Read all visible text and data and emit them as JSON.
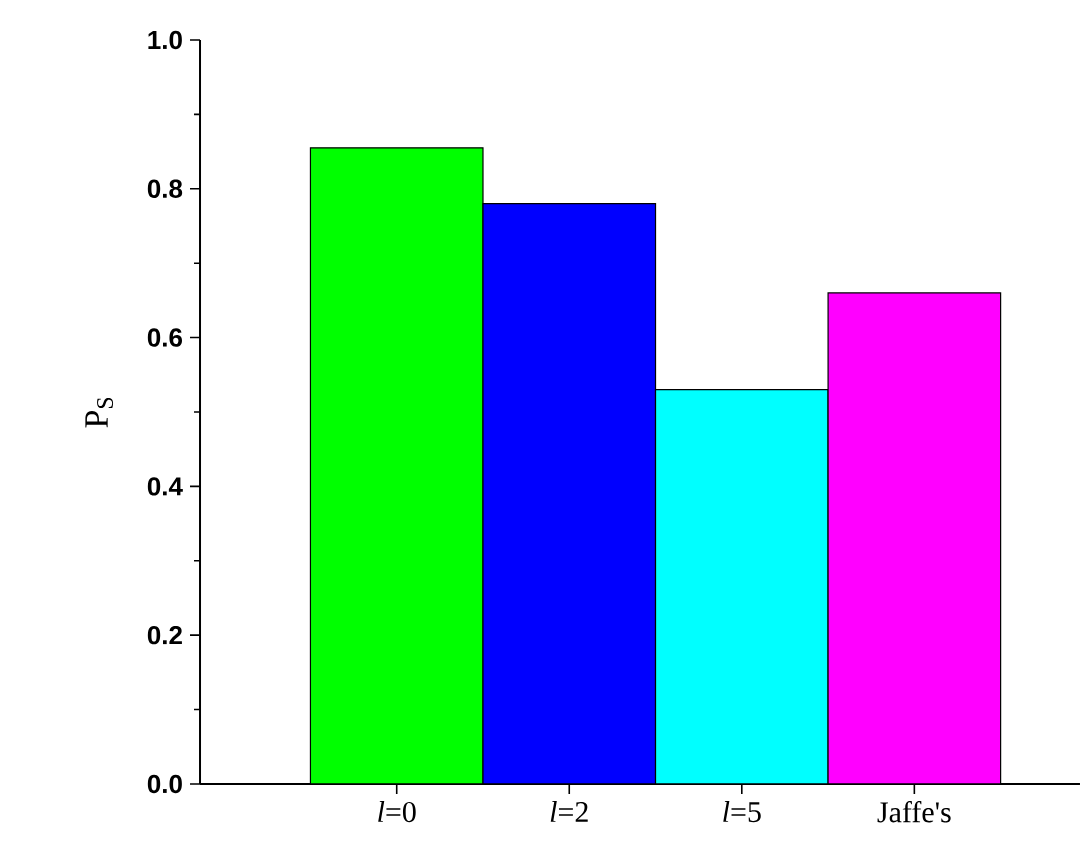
{
  "chart_data": {
    "type": "bar",
    "ylabel": "P$_{S}$",
    "categories": [
      "*l*=0",
      "*l*=2",
      "*l*=5",
      "Jaffe's"
    ],
    "values": [
      0.855,
      0.78,
      0.53,
      0.66
    ],
    "colors": [
      "#00ff00",
      "#0000ff",
      "#00ffff",
      "#ff00ff"
    ],
    "ylim": [
      0,
      1.0
    ],
    "yticks": [
      {
        "value": 0,
        "label": "0.0"
      },
      0.2,
      0.4,
      0.6,
      0.8,
      {
        "value": 1.0,
        "label": "1.0"
      }
    ],
    "grid": false
  }
}
